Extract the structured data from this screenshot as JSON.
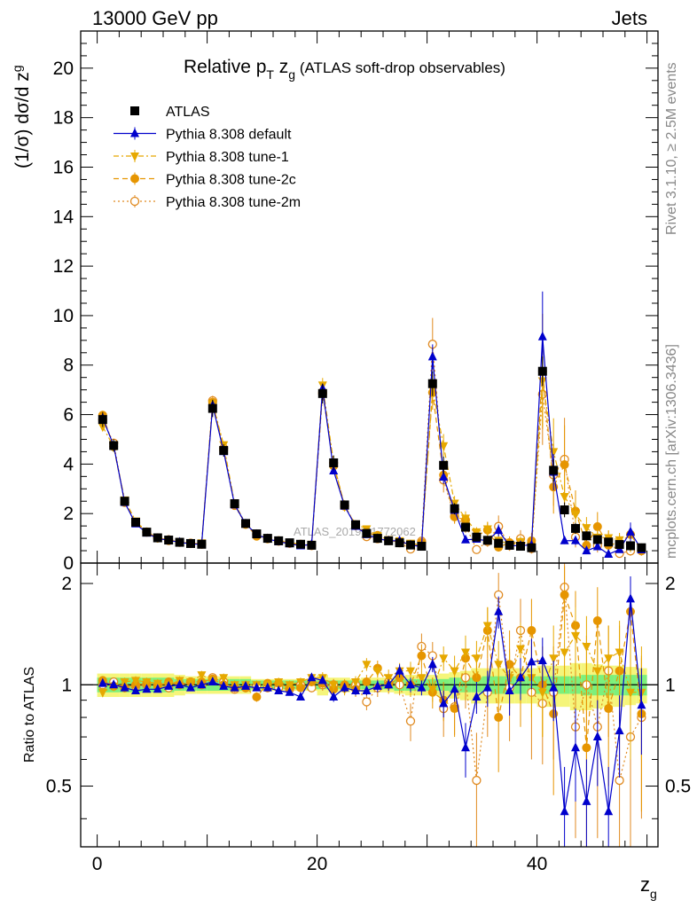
{
  "header": {
    "left": "13000 GeV pp",
    "right": "Jets"
  },
  "title": {
    "main": "Relative p",
    "sub1": "T",
    "mid": " z",
    "sub2": "g",
    "paren": " (ATLAS soft-drop observables)"
  },
  "side_labels": {
    "rivet": "Rivet 3.1.10, ≥ 2.5M events",
    "mcplots": "mcplots.cern.ch [arXiv:1306.3436]"
  },
  "watermark": "ATLAS_2019_I1772062",
  "axes": {
    "ylabel_top": "(1/σ) dσ/d z",
    "ylabel_top_sub": "g",
    "ylabel_bottom": "Ratio to ATLAS",
    "xlabel": "z",
    "xlabel_sub": "g"
  },
  "legend": [
    {
      "label": "ATLAS",
      "color": "#000000",
      "marker": "square",
      "line": "none"
    },
    {
      "label": "Pythia 8.308 default",
      "color": "#0000cc",
      "marker": "triangle-up",
      "line": "solid"
    },
    {
      "label": "Pythia 8.308 tune-1",
      "color": "#e6a800",
      "marker": "triangle-down",
      "line": "dashdot"
    },
    {
      "label": "Pythia 8.308 tune-2c",
      "color": "#e69500",
      "marker": "circle",
      "line": "dashed"
    },
    {
      "label": "Pythia 8.308 tune-2m",
      "color": "#e08a20",
      "marker": "circle-open",
      "line": "dotted"
    }
  ],
  "chart_data": {
    "type": "scatter",
    "x": [
      0.5,
      1.5,
      2.5,
      3.5,
      4.5,
      5.5,
      6.5,
      7.5,
      8.5,
      9.5,
      10.5,
      11.5,
      12.5,
      13.5,
      14.5,
      15.5,
      16.5,
      17.5,
      18.5,
      19.5,
      20.5,
      21.5,
      22.5,
      23.5,
      24.5,
      25.5,
      26.5,
      27.5,
      28.5,
      29.5,
      30.5,
      31.5,
      32.5,
      33.5,
      34.5,
      35.5,
      36.5,
      37.5,
      38.5,
      39.5,
      40.5,
      41.5,
      42.5,
      43.5,
      44.5,
      45.5,
      46.5,
      47.5,
      48.5,
      49.5
    ],
    "xlim": [
      -1.5,
      51
    ],
    "ylim_main": [
      0,
      21.5
    ],
    "ylim_ratio": [
      0.33,
      2.3
    ],
    "yticks_main": [
      0,
      2,
      4,
      6,
      8,
      10,
      12,
      14,
      16,
      18,
      20
    ],
    "yticks_ratio": [
      0.5,
      1,
      2
    ],
    "xticks": [
      0,
      20,
      40
    ],
    "log_ratio": true,
    "band_colors": {
      "inner": "#7cf07c",
      "outer": "#f5f57a"
    },
    "series": [
      {
        "name": "ATLAS",
        "values": [
          5.8,
          4.75,
          2.5,
          1.65,
          1.25,
          1.02,
          0.93,
          0.84,
          0.79,
          0.76,
          6.25,
          4.55,
          2.4,
          1.6,
          1.18,
          1.0,
          0.9,
          0.82,
          0.76,
          0.72,
          6.85,
          4.05,
          2.35,
          1.55,
          1.2,
          1.0,
          0.9,
          0.82,
          0.73,
          0.68,
          7.25,
          3.95,
          2.2,
          1.45,
          1.05,
          0.92,
          0.8,
          0.72,
          0.68,
          0.62,
          7.75,
          3.75,
          2.15,
          1.4,
          1.1,
          0.95,
          0.85,
          0.75,
          0.7,
          0.62
        ],
        "err": [
          0.3,
          0.25,
          0.15,
          0.1,
          0.08,
          0.06,
          0.06,
          0.05,
          0.05,
          0.05,
          0.35,
          0.25,
          0.15,
          0.1,
          0.08,
          0.07,
          0.06,
          0.06,
          0.05,
          0.05,
          0.4,
          0.3,
          0.18,
          0.12,
          0.1,
          0.08,
          0.07,
          0.07,
          0.06,
          0.06,
          0.5,
          0.35,
          0.22,
          0.15,
          0.12,
          0.1,
          0.1,
          0.1,
          0.1,
          0.1,
          0.6,
          0.45,
          0.3,
          0.22,
          0.18,
          0.15,
          0.15,
          0.15,
          0.15,
          0.15
        ],
        "band_inner": [
          0.05,
          0.05,
          0.05,
          0.05,
          0.05,
          0.05,
          0.05,
          0.04,
          0.04,
          0.04,
          0.04,
          0.04,
          0.04,
          0.04,
          0.03,
          0.03,
          0.03,
          0.03,
          0.03,
          0.03,
          0.03,
          0.03,
          0.03,
          0.03,
          0.03,
          0.03,
          0.03,
          0.04,
          0.04,
          0.04,
          0.04,
          0.04,
          0.05,
          0.05,
          0.05,
          0.06,
          0.06,
          0.06,
          0.06,
          0.06,
          0.06,
          0.06,
          0.06,
          0.06,
          0.07,
          0.07,
          0.07,
          0.07,
          0.07,
          0.07
        ],
        "band_outer": [
          0.08,
          0.08,
          0.08,
          0.08,
          0.08,
          0.08,
          0.08,
          0.07,
          0.06,
          0.06,
          0.06,
          0.06,
          0.06,
          0.06,
          0.04,
          0.04,
          0.04,
          0.04,
          0.04,
          0.04,
          0.07,
          0.05,
          0.05,
          0.04,
          0.05,
          0.05,
          0.05,
          0.06,
          0.07,
          0.07,
          0.07,
          0.08,
          0.09,
          0.1,
          0.12,
          0.12,
          0.12,
          0.12,
          0.12,
          0.12,
          0.14,
          0.14,
          0.14,
          0.16,
          0.16,
          0.15,
          0.14,
          0.14,
          0.13,
          0.12
        ]
      },
      {
        "name": "Pythia 8.308 default",
        "ratio": [
          1.01,
          1.0,
          0.98,
          0.96,
          0.97,
          0.97,
          0.99,
          1.0,
          0.98,
          1.0,
          1.02,
          0.99,
          0.98,
          0.99,
          0.98,
          0.98,
          0.96,
          0.95,
          0.92,
          1.05,
          1.03,
          0.92,
          0.98,
          0.96,
          0.96,
          0.99,
          1.0,
          1.1,
          1.0,
          0.98,
          1.15,
          0.88,
          0.97,
          0.65,
          0.92,
          0.98,
          1.65,
          0.96,
          1.05,
          1.17,
          1.18,
          0.98,
          0.42,
          0.65,
          0.45,
          0.7,
          0.42,
          0.73,
          1.8,
          0.87
        ],
        "ratio_err": [
          0.02,
          0.02,
          0.02,
          0.02,
          0.02,
          0.02,
          0.02,
          0.02,
          0.02,
          0.02,
          0.02,
          0.02,
          0.02,
          0.02,
          0.02,
          0.02,
          0.02,
          0.02,
          0.02,
          0.02,
          0.02,
          0.03,
          0.03,
          0.03,
          0.03,
          0.04,
          0.04,
          0.05,
          0.05,
          0.05,
          0.06,
          0.08,
          0.08,
          0.12,
          0.1,
          0.12,
          0.18,
          0.15,
          0.15,
          0.2,
          0.2,
          0.2,
          0.15,
          0.2,
          0.15,
          0.2,
          0.15,
          0.2,
          0.3,
          0.25
        ]
      },
      {
        "name": "Pythia 8.308 tune-1",
        "ratio": [
          0.95,
          0.99,
          1.02,
          1.03,
          1.02,
          1.01,
          1.0,
          1.03,
          1.02,
          1.07,
          1.03,
          1.05,
          1.0,
          1.0,
          1.0,
          1.0,
          1.02,
          1.0,
          1.02,
          1.05,
          1.05,
          1.0,
          0.97,
          1.02,
          1.15,
          1.1,
          1.05,
          1.1,
          1.1,
          1.05,
          0.97,
          1.2,
          1.1,
          1.25,
          1.2,
          1.5,
          1.15,
          1.05,
          1.28,
          1.05,
          0.95,
          1.2,
          1.25,
          1.4,
          1.3,
          1.1,
          1.2,
          1.25,
          0.95,
          0.95
        ],
        "ratio_err": [
          0.03,
          0.03,
          0.03,
          0.03,
          0.03,
          0.03,
          0.03,
          0.03,
          0.03,
          0.03,
          0.03,
          0.03,
          0.03,
          0.03,
          0.03,
          0.03,
          0.03,
          0.03,
          0.03,
          0.03,
          0.04,
          0.04,
          0.04,
          0.04,
          0.05,
          0.05,
          0.06,
          0.06,
          0.07,
          0.07,
          0.08,
          0.1,
          0.12,
          0.15,
          0.15,
          0.2,
          0.2,
          0.2,
          0.25,
          0.25,
          0.25,
          0.3,
          0.3,
          0.3,
          0.3,
          0.3,
          0.3,
          0.3,
          0.35,
          0.35
        ]
      },
      {
        "name": "Pythia 8.308 tune-2c",
        "ratio": [
          1.03,
          0.99,
          0.98,
          1.0,
          1.01,
          0.99,
          1.02,
          1.0,
          1.02,
          1.02,
          1.04,
          1.0,
          0.98,
          0.98,
          0.92,
          1.01,
          1.01,
          0.98,
          0.98,
          1.02,
          1.01,
          0.97,
          1.0,
          0.97,
          1.02,
          1.12,
          1.0,
          1.05,
          1.0,
          1.22,
          0.95,
          0.9,
          0.85,
          1.2,
          1.05,
          1.45,
          0.8,
          1.15,
          1.05,
          1.45,
          1.0,
          0.82,
          1.85,
          1.5,
          0.65,
          1.55,
          0.85,
          1.1,
          1.65,
          0.82
        ],
        "ratio_err": [
          0.03,
          0.03,
          0.03,
          0.03,
          0.03,
          0.03,
          0.03,
          0.03,
          0.03,
          0.03,
          0.03,
          0.03,
          0.03,
          0.03,
          0.03,
          0.03,
          0.03,
          0.03,
          0.03,
          0.03,
          0.04,
          0.04,
          0.04,
          0.05,
          0.05,
          0.06,
          0.06,
          0.07,
          0.08,
          0.1,
          0.1,
          0.12,
          0.15,
          0.2,
          0.2,
          0.25,
          0.25,
          0.3,
          0.3,
          0.35,
          0.3,
          0.35,
          0.4,
          0.4,
          0.35,
          0.4,
          0.35,
          0.4,
          0.4,
          0.4
        ]
      },
      {
        "name": "Pythia 8.308 tune-2m",
        "ratio": [
          1.0,
          1.02,
          0.98,
          0.99,
          1.0,
          1.0,
          0.98,
          1.0,
          1.02,
          1.0,
          1.05,
          1.02,
          0.97,
          0.98,
          0.99,
          0.98,
          0.98,
          0.97,
          1.0,
          0.98,
          1.0,
          1.0,
          0.98,
          1.0,
          0.89,
          0.98,
          1.02,
          1.0,
          0.78,
          1.3,
          1.22,
          0.85,
          0.86,
          1.05,
          0.52,
          0.95,
          1.85,
          0.98,
          1.45,
          0.95,
          0.88,
          0.95,
          1.95,
          0.75,
          1.0,
          0.75,
          1.1,
          0.52,
          0.7,
          0.8
        ],
        "ratio_err": [
          0.03,
          0.03,
          0.03,
          0.03,
          0.03,
          0.03,
          0.03,
          0.03,
          0.03,
          0.03,
          0.03,
          0.03,
          0.03,
          0.03,
          0.03,
          0.03,
          0.03,
          0.03,
          0.03,
          0.03,
          0.04,
          0.04,
          0.04,
          0.05,
          0.05,
          0.06,
          0.06,
          0.07,
          0.1,
          0.12,
          0.12,
          0.15,
          0.15,
          0.2,
          0.2,
          0.25,
          0.3,
          0.3,
          0.35,
          0.35,
          0.3,
          0.35,
          0.4,
          0.4,
          0.4,
          0.4,
          0.4,
          0.4,
          0.4,
          0.4
        ]
      }
    ]
  }
}
